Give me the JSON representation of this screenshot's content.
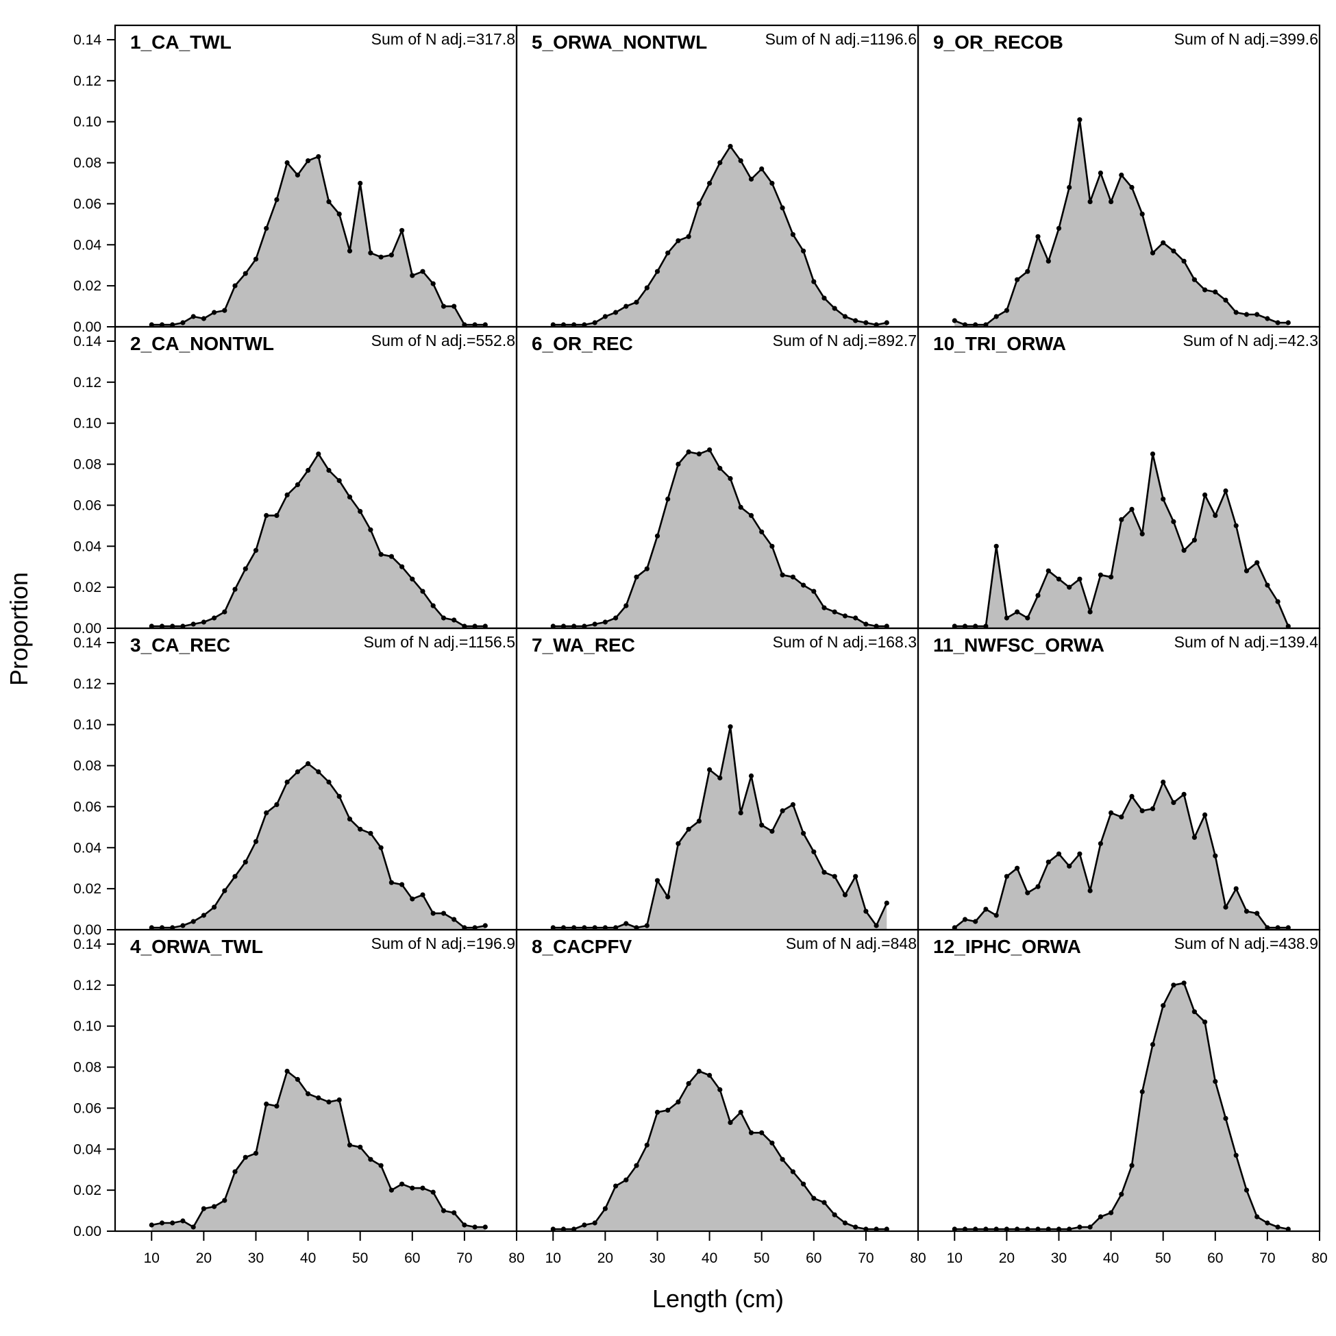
{
  "chart_data": {
    "type": "area",
    "xlabel": "Length (cm)",
    "ylabel": "Proportion",
    "xlim": [
      3,
      80
    ],
    "ylim": [
      0,
      0.147
    ],
    "x_ticks": [
      10,
      20,
      30,
      40,
      50,
      60,
      70,
      80
    ],
    "y_ticks": [
      0.0,
      0.02,
      0.04,
      0.06,
      0.08,
      0.1,
      0.12,
      0.14
    ],
    "y_tick_labels": [
      "0.00",
      "0.02",
      "0.04",
      "0.06",
      "0.08",
      "0.10",
      "0.12",
      "0.14"
    ],
    "x": [
      10,
      12,
      14,
      16,
      18,
      20,
      22,
      24,
      26,
      28,
      30,
      32,
      34,
      36,
      38,
      40,
      42,
      44,
      46,
      48,
      50,
      52,
      54,
      56,
      58,
      60,
      62,
      64,
      66,
      68,
      70,
      72,
      74
    ],
    "fill_color": "#bebebe",
    "line_color": "#000000",
    "panels": [
      {
        "title": "1_CA_TWL",
        "sum_label": "Sum of N adj.=317.8",
        "col": 0,
        "row": 0,
        "values": [
          0.001,
          0.001,
          0.001,
          0.002,
          0.005,
          0.004,
          0.007,
          0.008,
          0.02,
          0.026,
          0.033,
          0.048,
          0.062,
          0.08,
          0.074,
          0.081,
          0.083,
          0.061,
          0.055,
          0.037,
          0.07,
          0.036,
          0.034,
          0.035,
          0.047,
          0.025,
          0.027,
          0.021,
          0.01,
          0.01,
          0.001,
          0.001,
          0.001
        ]
      },
      {
        "title": "2_CA_NONTWL",
        "sum_label": "Sum of N adj.=552.8",
        "col": 0,
        "row": 1,
        "values": [
          0.001,
          0.001,
          0.001,
          0.001,
          0.002,
          0.003,
          0.005,
          0.008,
          0.019,
          0.029,
          0.038,
          0.055,
          0.055,
          0.065,
          0.07,
          0.077,
          0.085,
          0.077,
          0.072,
          0.064,
          0.057,
          0.048,
          0.036,
          0.035,
          0.03,
          0.024,
          0.018,
          0.011,
          0.005,
          0.004,
          0.001,
          0.001,
          0.001
        ]
      },
      {
        "title": "3_CA_REC",
        "sum_label": "Sum of N adj.=1156.5",
        "col": 0,
        "row": 2,
        "values": [
          0.001,
          0.001,
          0.001,
          0.002,
          0.004,
          0.007,
          0.011,
          0.019,
          0.026,
          0.033,
          0.043,
          0.057,
          0.061,
          0.072,
          0.077,
          0.081,
          0.077,
          0.072,
          0.065,
          0.054,
          0.049,
          0.047,
          0.04,
          0.023,
          0.022,
          0.015,
          0.017,
          0.008,
          0.008,
          0.005,
          0.001,
          0.001,
          0.002
        ]
      },
      {
        "title": "4_ORWA_TWL",
        "sum_label": "Sum of N adj.=196.9",
        "col": 0,
        "row": 3,
        "values": [
          0.003,
          0.004,
          0.004,
          0.005,
          0.002,
          0.011,
          0.012,
          0.015,
          0.029,
          0.036,
          0.038,
          0.062,
          0.061,
          0.078,
          0.074,
          0.067,
          0.065,
          0.063,
          0.064,
          0.042,
          0.041,
          0.035,
          0.032,
          0.02,
          0.023,
          0.021,
          0.021,
          0.019,
          0.01,
          0.009,
          0.003,
          0.002,
          0.002
        ]
      },
      {
        "title": "5_ORWA_NONTWL",
        "sum_label": "Sum of N adj.=1196.6",
        "col": 1,
        "row": 0,
        "values": [
          0.001,
          0.001,
          0.001,
          0.001,
          0.002,
          0.005,
          0.007,
          0.01,
          0.012,
          0.019,
          0.027,
          0.036,
          0.042,
          0.044,
          0.06,
          0.07,
          0.08,
          0.088,
          0.081,
          0.072,
          0.077,
          0.07,
          0.058,
          0.045,
          0.037,
          0.022,
          0.014,
          0.009,
          0.005,
          0.003,
          0.002,
          0.001,
          0.002
        ]
      },
      {
        "title": "6_OR_REC",
        "sum_label": "Sum of N adj.=892.7",
        "col": 1,
        "row": 1,
        "values": [
          0.001,
          0.001,
          0.001,
          0.001,
          0.002,
          0.003,
          0.005,
          0.011,
          0.025,
          0.029,
          0.045,
          0.063,
          0.08,
          0.086,
          0.085,
          0.087,
          0.078,
          0.073,
          0.059,
          0.055,
          0.047,
          0.04,
          0.026,
          0.025,
          0.021,
          0.018,
          0.01,
          0.008,
          0.006,
          0.005,
          0.002,
          0.001,
          0.001
        ]
      },
      {
        "title": "7_WA_REC",
        "sum_label": "Sum of N adj.=168.3",
        "col": 1,
        "row": 2,
        "values": [
          0.001,
          0.001,
          0.001,
          0.001,
          0.001,
          0.001,
          0.001,
          0.003,
          0.001,
          0.002,
          0.024,
          0.016,
          0.042,
          0.049,
          0.053,
          0.078,
          0.074,
          0.099,
          0.057,
          0.075,
          0.051,
          0.048,
          0.058,
          0.061,
          0.047,
          0.038,
          0.028,
          0.026,
          0.017,
          0.026,
          0.009,
          0.002,
          0.013
        ]
      },
      {
        "title": "8_CACPFV",
        "sum_label": "Sum of N adj.=848",
        "col": 1,
        "row": 3,
        "values": [
          0.001,
          0.001,
          0.001,
          0.003,
          0.004,
          0.011,
          0.022,
          0.025,
          0.032,
          0.042,
          0.058,
          0.059,
          0.063,
          0.072,
          0.078,
          0.076,
          0.069,
          0.053,
          0.058,
          0.048,
          0.048,
          0.043,
          0.035,
          0.029,
          0.023,
          0.016,
          0.014,
          0.008,
          0.004,
          0.002,
          0.001,
          0.001,
          0.001
        ]
      },
      {
        "title": "9_OR_RECOB",
        "sum_label": "Sum of N adj.=399.6",
        "col": 2,
        "row": 0,
        "values": [
          0.003,
          0.001,
          0.001,
          0.001,
          0.005,
          0.008,
          0.023,
          0.027,
          0.044,
          0.032,
          0.048,
          0.068,
          0.101,
          0.061,
          0.075,
          0.061,
          0.074,
          0.068,
          0.055,
          0.036,
          0.041,
          0.037,
          0.032,
          0.023,
          0.018,
          0.017,
          0.013,
          0.007,
          0.006,
          0.006,
          0.004,
          0.002,
          0.002
        ]
      },
      {
        "title": "10_TRI_ORWA",
        "sum_label": "Sum of N adj.=42.3",
        "col": 2,
        "row": 1,
        "values": [
          0.001,
          0.001,
          0.001,
          0.001,
          0.04,
          0.005,
          0.008,
          0.005,
          0.016,
          0.028,
          0.024,
          0.02,
          0.024,
          0.008,
          0.026,
          0.025,
          0.053,
          0.058,
          0.046,
          0.085,
          0.063,
          0.052,
          0.038,
          0.043,
          0.065,
          0.055,
          0.067,
          0.05,
          0.028,
          0.032,
          0.021,
          0.013,
          0.001
        ]
      },
      {
        "title": "11_NWFSC_ORWA",
        "sum_label": "Sum of N adj.=139.4",
        "col": 2,
        "row": 2,
        "values": [
          0.001,
          0.005,
          0.004,
          0.01,
          0.007,
          0.026,
          0.03,
          0.018,
          0.021,
          0.033,
          0.037,
          0.031,
          0.037,
          0.019,
          0.042,
          0.057,
          0.055,
          0.065,
          0.058,
          0.059,
          0.072,
          0.062,
          0.066,
          0.045,
          0.056,
          0.036,
          0.011,
          0.02,
          0.009,
          0.008,
          0.001,
          0.001,
          0.001
        ]
      },
      {
        "title": "12_IPHC_ORWA",
        "sum_label": "Sum of N adj.=438.9",
        "col": 2,
        "row": 3,
        "values": [
          0.001,
          0.001,
          0.001,
          0.001,
          0.001,
          0.001,
          0.001,
          0.001,
          0.001,
          0.001,
          0.001,
          0.001,
          0.002,
          0.002,
          0.007,
          0.009,
          0.018,
          0.032,
          0.068,
          0.091,
          0.11,
          0.12,
          0.121,
          0.107,
          0.102,
          0.073,
          0.055,
          0.037,
          0.02,
          0.007,
          0.004,
          0.002,
          0.001
        ]
      }
    ]
  }
}
